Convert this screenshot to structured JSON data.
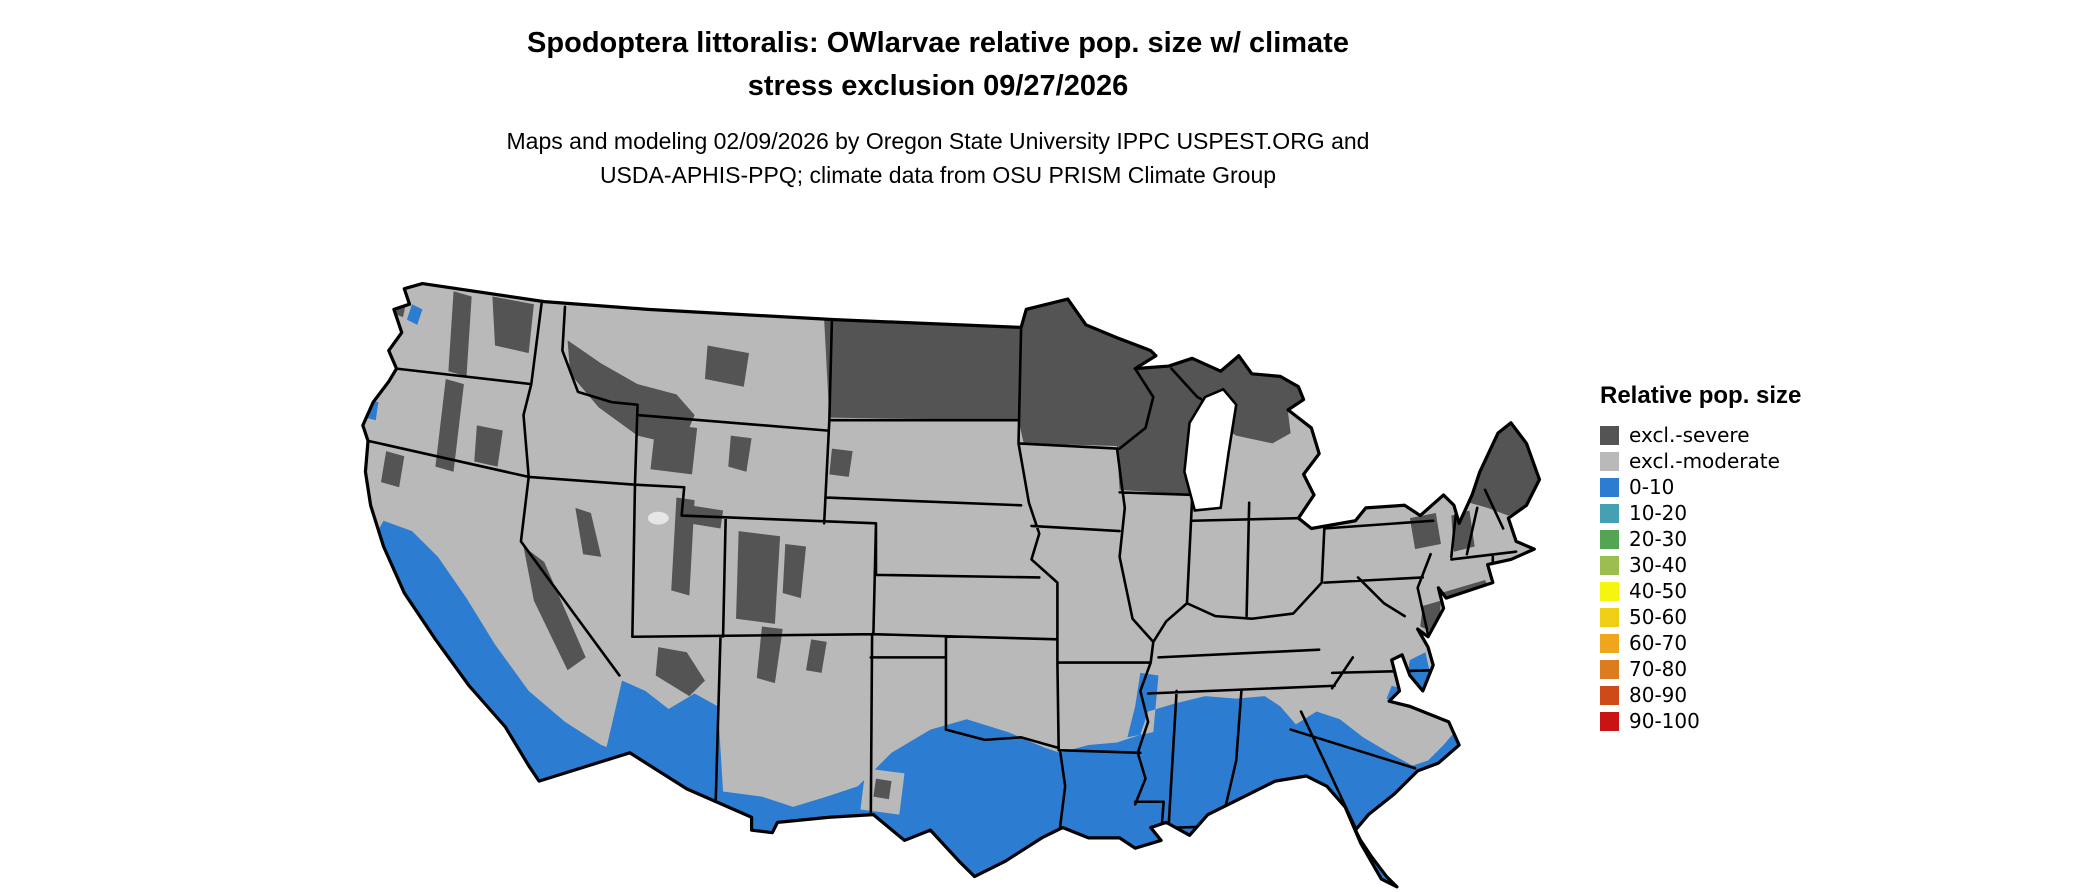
{
  "title": {
    "line1": "Spodoptera littoralis: OWlarvae relative pop. size w/ climate",
    "line2": "stress exclusion 09/27/2026"
  },
  "subtitle": {
    "line1": "Maps and modeling 02/09/2026 by Oregon State University IPPC USPEST.ORG and",
    "line2": "USDA-APHIS-PPQ; climate data from OSU PRISM Climate Group"
  },
  "legend": {
    "title": "Relative pop. size",
    "entries": [
      {
        "label": "excl.-severe",
        "color": "#545454"
      },
      {
        "label": "excl.-moderate",
        "color": "#B9B9B9"
      },
      {
        "label": "0-10",
        "color": "#2C7DD1"
      },
      {
        "label": "10-20",
        "color": "#46A0B4"
      },
      {
        "label": "20-30",
        "color": "#53A453"
      },
      {
        "label": "30-40",
        "color": "#9CBE4E"
      },
      {
        "label": "40-50",
        "color": "#F5F50E"
      },
      {
        "label": "50-60",
        "color": "#EFCF16"
      },
      {
        "label": "60-70",
        "color": "#EFA51C"
      },
      {
        "label": "70-80",
        "color": "#DC7C1E"
      },
      {
        "label": "80-90",
        "color": "#CE4A19"
      },
      {
        "label": "90-100",
        "color": "#C81414"
      }
    ]
  },
  "map": {
    "region": "contiguous United States",
    "background": "#FFFFFF",
    "water_color": "#FFFFFF",
    "border_color": "#000000",
    "fill_categories": {
      "excl_severe": "#545454",
      "excl_moderate": "#B9B9B9",
      "pop_0_10": "#2C7DD1"
    },
    "category_regions": {
      "excl_severe": [
        "North Dakota",
        "Minnesota",
        "Wisconsin",
        "Upper Michigan",
        "Maine",
        "northern New England",
        "Adirondacks",
        "northern Rockies",
        "Cascades",
        "Sierra Nevada",
        "Colorado Rockies"
      ],
      "excl_moderate": [
        "most of the central, midwestern and northeastern US"
      ],
      "pop_0_10": [
        "coastal and central California",
        "southern Arizona",
        "southern New Mexico",
        "central and southern Texas",
        "Louisiana",
        "southern Arkansas",
        "Mississippi",
        "Alabama",
        "Georgia",
        "Florida",
        "South Carolina",
        "coastal North Carolina"
      ]
    }
  }
}
